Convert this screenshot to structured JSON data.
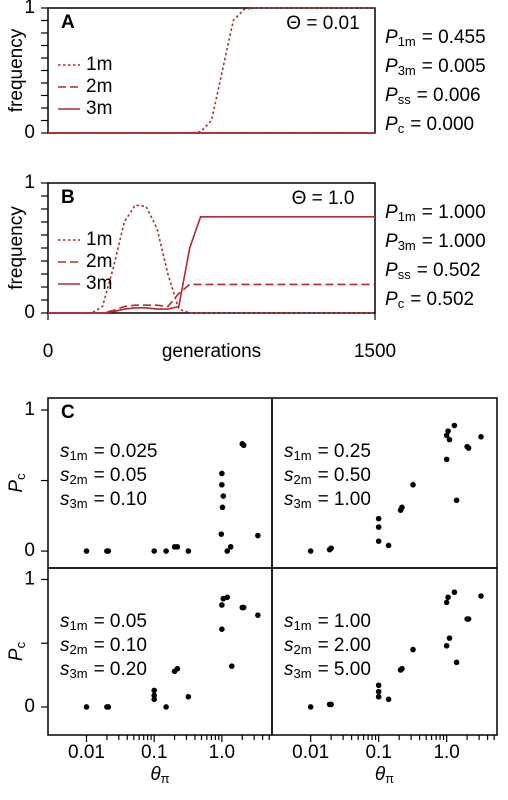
{
  "chart_data": [
    {
      "type": "line",
      "panel_label": "A",
      "annotation": "Θ = 0.01",
      "ylabel": "frequency",
      "x": [
        0,
        50,
        100,
        150,
        200,
        250,
        300,
        350,
        400,
        450,
        500,
        550,
        600,
        650,
        700,
        750,
        800,
        850,
        900,
        950,
        1000,
        1050,
        1100,
        1150,
        1200,
        1250,
        1300,
        1350,
        1400,
        1450,
        1500
      ],
      "xlim": [
        0,
        1500
      ],
      "ylim": [
        0,
        1
      ],
      "yticks": [
        0,
        1
      ],
      "minor_yticks": [
        0.1,
        0.2,
        0.3,
        0.4,
        0.5,
        0.6,
        0.7,
        0.8,
        0.9
      ],
      "legend": "upper left",
      "series": [
        {
          "name": "1m",
          "color": "#b5282d",
          "dash": "dotted",
          "values": [
            0,
            0,
            0,
            0,
            0,
            0,
            0,
            0,
            0,
            0,
            0,
            0,
            0,
            0,
            0.01,
            0.1,
            0.5,
            0.9,
            0.99,
            1,
            1,
            1,
            1,
            1,
            1,
            1,
            1,
            1,
            1,
            1,
            1
          ]
        },
        {
          "name": "2m",
          "color": "#b5282d",
          "dash": "dashed",
          "values": [
            0,
            0,
            0,
            0,
            0,
            0,
            0,
            0,
            0,
            0,
            0,
            0,
            0,
            0,
            0,
            0,
            0,
            0,
            0,
            0,
            0,
            0,
            0,
            0,
            0,
            0,
            0,
            0,
            0,
            0,
            0
          ]
        },
        {
          "name": "3m",
          "color": "#b5282d",
          "dash": "solid",
          "values": [
            0,
            0,
            0,
            0,
            0,
            0,
            0,
            0,
            0,
            0,
            0,
            0,
            0,
            0,
            0,
            0,
            0,
            0,
            0,
            0,
            0,
            0,
            0,
            0,
            0,
            0,
            0,
            0,
            0,
            0,
            0
          ]
        }
      ],
      "stats": [
        {
          "var": "P",
          "sub": "1m",
          "text": "= 0.455"
        },
        {
          "var": "P",
          "sub": "3m",
          "text": "= 0.005"
        },
        {
          "var": "P",
          "sub": "ss",
          "text": "= 0.006"
        },
        {
          "var": "P",
          "sub": "c",
          "text": "= 0.000"
        }
      ]
    },
    {
      "type": "line",
      "panel_label": "B",
      "annotation": "Θ = 1.0",
      "ylabel": "frequency",
      "xlabel": "generations",
      "x": [
        0,
        50,
        100,
        150,
        200,
        250,
        300,
        350,
        400,
        450,
        500,
        550,
        600,
        650,
        700,
        750,
        800,
        850,
        900,
        950,
        1000,
        1050,
        1100,
        1150,
        1200,
        1250,
        1300,
        1350,
        1400,
        1450,
        1500
      ],
      "xlim": [
        0,
        1500
      ],
      "xticks": [
        0,
        1500
      ],
      "ylim": [
        0,
        1
      ],
      "yticks": [
        0,
        1
      ],
      "minor_yticks": [
        0.1,
        0.2,
        0.3,
        0.4,
        0.5,
        0.6,
        0.7,
        0.8,
        0.9
      ],
      "legend": "upper left",
      "series": [
        {
          "name": "1m",
          "color": "#b5282d",
          "dash": "dotted",
          "values": [
            0,
            0,
            0,
            0,
            0,
            0.05,
            0.35,
            0.7,
            0.83,
            0.82,
            0.65,
            0.3,
            0.03,
            0,
            0,
            0,
            0,
            0,
            0,
            0,
            0,
            0,
            0,
            0,
            0,
            0,
            0,
            0,
            0,
            0,
            0
          ]
        },
        {
          "name": "2m",
          "color": "#b5282d",
          "dash": "dashed",
          "values": [
            0,
            0,
            0,
            0,
            0,
            0,
            0.02,
            0.05,
            0.06,
            0.06,
            0.06,
            0.05,
            0.15,
            0.22,
            0.22,
            0.22,
            0.22,
            0.22,
            0.22,
            0.22,
            0.22,
            0.22,
            0.22,
            0.22,
            0.22,
            0.22,
            0.22,
            0.22,
            0.22,
            0.22,
            0.22
          ]
        },
        {
          "name": "3m",
          "color": "#b5282d",
          "dash": "solid",
          "values": [
            0,
            0,
            0,
            0,
            0,
            0,
            0.01,
            0.03,
            0.04,
            0.04,
            0.03,
            0.03,
            0.05,
            0.5,
            0.74,
            0.74,
            0.74,
            0.74,
            0.74,
            0.74,
            0.74,
            0.74,
            0.74,
            0.74,
            0.74,
            0.74,
            0.74,
            0.74,
            0.74,
            0.74,
            0.74
          ]
        }
      ],
      "stats": [
        {
          "var": "P",
          "sub": "1m",
          "text": "= 1.000"
        },
        {
          "var": "P",
          "sub": "3m",
          "text": "= 1.000"
        },
        {
          "var": "P",
          "sub": "ss",
          "text": "= 0.502"
        },
        {
          "var": "P",
          "sub": "c",
          "text": "= 0.502"
        }
      ]
    },
    {
      "type": "scatter",
      "panel_label": "C",
      "log_x": true,
      "color": "#000000",
      "ylabel": {
        "var": "P",
        "sub": "c"
      },
      "xlim": [
        0.0027,
        5.5
      ],
      "ylim": [
        -0.12,
        1.085
      ],
      "yticks": [
        0,
        1
      ],
      "minor_yticks": [
        0.5
      ],
      "x": [
        0.01,
        0.02,
        0.021,
        0.1,
        0.15,
        0.2,
        0.22,
        0.32,
        1.0,
        1.0,
        1.05,
        1.02,
        0.98,
        1.2,
        1.35,
        2.0,
        2.1,
        3.4
      ],
      "values": [
        0,
        0,
        0,
        0,
        0,
        0.03,
        0.03,
        0,
        0.55,
        0.47,
        0.39,
        0.31,
        0.12,
        0,
        0.03,
        0.76,
        0.75,
        0.11
      ],
      "params": [
        {
          "var": "s",
          "sub": "1m",
          "text": "= 0.025"
        },
        {
          "var": "s",
          "sub": "2m",
          "text": "= 0.05"
        },
        {
          "var": "s",
          "sub": "3m",
          "text": "= 0.10"
        }
      ]
    },
    {
      "type": "scatter",
      "log_x": true,
      "color": "#000000",
      "xlim": [
        0.0027,
        5.5
      ],
      "ylim": [
        -0.12,
        1.085
      ],
      "x": [
        0.01,
        0.019,
        0.02,
        0.1,
        0.1,
        0.1,
        0.14,
        0.21,
        0.22,
        0.32,
        1.0,
        1.0,
        1.05,
        1.1,
        1.3,
        1.4,
        2.0,
        2.1,
        3.2
      ],
      "values": [
        0,
        0.01,
        0.02,
        0.23,
        0.17,
        0.07,
        0.04,
        0.29,
        0.31,
        0.47,
        0.65,
        0.82,
        0.85,
        0.79,
        0.89,
        0.36,
        0.74,
        0.73,
        0.81
      ],
      "params": [
        {
          "var": "s",
          "sub": "1m",
          "text": "= 0.25"
        },
        {
          "var": "s",
          "sub": "2m",
          "text": "= 0.50"
        },
        {
          "var": "s",
          "sub": "3m",
          "text": "= 1.00"
        }
      ]
    },
    {
      "type": "scatter",
      "log_x": true,
      "color": "#000000",
      "ylabel": {
        "var": "P",
        "sub": "c"
      },
      "xlabel": {
        "var": "θ",
        "sub": "π"
      },
      "xlim": [
        0.0027,
        5.5
      ],
      "ylim": [
        -0.22,
        1.09
      ],
      "yticks": [
        0,
        1
      ],
      "minor_yticks": [
        0.5
      ],
      "xticks": [
        0.01,
        0.1,
        {
          "value": 1,
          "label": "1.0"
        }
      ],
      "minor_xticks": [
        0.02,
        0.03,
        0.04,
        0.05,
        0.06,
        0.07,
        0.08,
        0.09,
        0.2,
        0.3,
        0.4,
        0.5,
        0.6,
        0.7,
        0.8,
        0.9,
        2,
        3,
        4,
        5
      ],
      "x": [
        0.01,
        0.02,
        0.021,
        0.1,
        0.1,
        0.1,
        0.15,
        0.2,
        0.22,
        0.32,
        1.0,
        1.0,
        1.05,
        1.2,
        1.4,
        2.0,
        2.1,
        3.4
      ],
      "values": [
        0,
        0,
        0,
        0.13,
        0.09,
        0.06,
        0,
        0.28,
        0.3,
        0.08,
        0.61,
        0.8,
        0.85,
        0.86,
        0.32,
        0.78,
        0.78,
        0.72
      ],
      "params": [
        {
          "var": "s",
          "sub": "1m",
          "text": "= 0.05"
        },
        {
          "var": "s",
          "sub": "2m",
          "text": "= 0.10"
        },
        {
          "var": "s",
          "sub": "3m",
          "text": "= 0.20"
        }
      ]
    },
    {
      "type": "scatter",
      "log_x": true,
      "color": "#000000",
      "xlabel": {
        "var": "θ",
        "sub": "π"
      },
      "xlim": [
        0.0027,
        5.5
      ],
      "ylim": [
        -0.22,
        1.09
      ],
      "xticks": [
        0.01,
        0.1,
        {
          "value": 1,
          "label": "1.0"
        }
      ],
      "minor_xticks": [
        0.02,
        0.03,
        0.04,
        0.05,
        0.06,
        0.07,
        0.08,
        0.09,
        0.2,
        0.3,
        0.4,
        0.5,
        0.6,
        0.7,
        0.8,
        0.9,
        2,
        3,
        4,
        5
      ],
      "x": [
        0.01,
        0.019,
        0.02,
        0.1,
        0.1,
        0.1,
        0.14,
        0.21,
        0.22,
        0.32,
        1.0,
        1.0,
        1.05,
        1.1,
        1.3,
        1.4,
        2.0,
        2.1,
        3.2
      ],
      "values": [
        0,
        0.02,
        0.02,
        0.17,
        0.12,
        0.08,
        0.06,
        0.29,
        0.3,
        0.45,
        0.48,
        0.82,
        0.86,
        0.54,
        0.9,
        0.35,
        0.69,
        0.69,
        0.87
      ],
      "params": [
        {
          "var": "s",
          "sub": "1m",
          "text": "= 1.00"
        },
        {
          "var": "s",
          "sub": "2m",
          "text": "= 2.00"
        },
        {
          "var": "s",
          "sub": "3m",
          "text": "= 5.00"
        }
      ]
    }
  ]
}
